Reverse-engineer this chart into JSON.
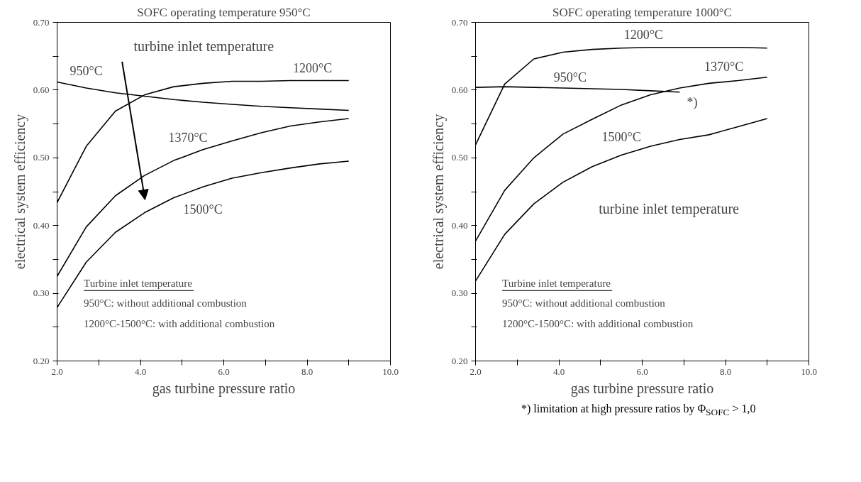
{
  "chart_data": [
    {
      "type": "line",
      "title": "SOFC operating temperature 950°C",
      "xlabel": "gas turbine pressure ratio",
      "ylabel": "electrical system efficiency",
      "x": [
        2.0,
        2.7,
        3.4,
        4.1,
        4.8,
        5.5,
        6.2,
        6.9,
        7.6,
        8.3,
        9.0
      ],
      "series": [
        {
          "name": "1200°C",
          "color": "#000000",
          "values": [
            0.434,
            0.517,
            0.569,
            0.593,
            0.605,
            0.61,
            0.613,
            0.613,
            0.614,
            0.614,
            0.614
          ]
        },
        {
          "name": "950°C",
          "color": "#000000",
          "values": [
            0.612,
            0.603,
            0.596,
            0.591,
            0.586,
            0.582,
            0.579,
            0.576,
            0.574,
            0.572,
            0.57
          ]
        },
        {
          "name": "1370°C",
          "color": "#000000",
          "values": [
            0.325,
            0.398,
            0.444,
            0.474,
            0.496,
            0.512,
            0.525,
            0.537,
            0.547,
            0.553,
            0.558
          ]
        },
        {
          "name": "1500°C",
          "color": "#000000",
          "values": [
            0.279,
            0.346,
            0.39,
            0.419,
            0.441,
            0.457,
            0.47,
            0.478,
            0.485,
            0.491,
            0.495
          ]
        }
      ],
      "xlim": [
        2.0,
        10.0
      ],
      "ylim": [
        0.2,
        0.7
      ],
      "xticks": [
        {
          "value": 2,
          "label": "2.0"
        },
        {
          "value": 3,
          "label": null
        },
        {
          "value": 4,
          "label": "4.0"
        },
        {
          "value": 5,
          "label": null
        },
        {
          "value": 6,
          "label": "6.0"
        },
        {
          "value": 7,
          "label": null
        },
        {
          "value": 8,
          "label": "8.0"
        },
        {
          "value": 9,
          "label": null
        },
        {
          "value": 10,
          "label": "10.0"
        }
      ],
      "yticks": [
        {
          "value": 0.2,
          "label": "0.20"
        },
        {
          "value": 0.25,
          "label": null
        },
        {
          "value": 0.3,
          "label": "0.30"
        },
        {
          "value": 0.35,
          "label": null
        },
        {
          "value": 0.4,
          "label": "0.40"
        },
        {
          "value": 0.45,
          "label": null
        },
        {
          "value": 0.5,
          "label": "0.50"
        },
        {
          "value": 0.55,
          "label": null
        },
        {
          "value": 0.6,
          "label": "0.60"
        },
        {
          "value": 0.65,
          "label": null
        },
        {
          "value": 0.7,
          "label": "0.70"
        }
      ],
      "grid": false,
      "legend": false,
      "line_style": "solid",
      "marker": "none",
      "annotations": [
        "Turbine inlet temperature",
        "950°C:   without additional combustion",
        "1200°C-1500°C:     with additional combustion",
        "turbine inlet temperature"
      ]
    },
    {
      "type": "line",
      "title": "SOFC operating temperature 1000°C",
      "xlabel": "gas turbine pressure ratio",
      "ylabel": "electrical system efficiency",
      "x": [
        2.0,
        2.7,
        3.4,
        4.1,
        4.8,
        5.5,
        6.2,
        6.9,
        7.6,
        8.3,
        9.0
      ],
      "series": [
        {
          "name": "1200°C",
          "color": "#000000",
          "values": [
            0.519,
            0.609,
            0.646,
            0.656,
            0.66,
            0.662,
            0.663,
            0.663,
            0.663,
            0.663,
            0.662
          ]
        },
        {
          "name": "950°C",
          "color": "#000000",
          "values": [
            0.604,
            0.605,
            0.604,
            0.603,
            0.602,
            0.601,
            0.599,
            0.597,
            null,
            null,
            null
          ]
        },
        {
          "name": "1370°C",
          "color": "#000000",
          "values": [
            0.377,
            0.452,
            0.5,
            0.535,
            0.557,
            0.578,
            0.593,
            0.603,
            0.61,
            0.614,
            0.619
          ]
        },
        {
          "name": "1500°C",
          "color": "#000000",
          "values": [
            0.318,
            0.387,
            0.432,
            0.464,
            0.487,
            0.504,
            0.517,
            0.527,
            0.534,
            0.546,
            0.558
          ]
        }
      ],
      "xlim": [
        2.0,
        10.0
      ],
      "ylim": [
        0.2,
        0.7
      ],
      "xticks": [
        {
          "value": 2,
          "label": "2.0"
        },
        {
          "value": 3,
          "label": null
        },
        {
          "value": 4,
          "label": "4.0"
        },
        {
          "value": 5,
          "label": null
        },
        {
          "value": 6,
          "label": "6.0"
        },
        {
          "value": 7,
          "label": null
        },
        {
          "value": 8,
          "label": "8.0"
        },
        {
          "value": 9,
          "label": null
        },
        {
          "value": 10,
          "label": "10.0"
        }
      ],
      "yticks": [
        {
          "value": 0.2,
          "label": "0.20"
        },
        {
          "value": 0.25,
          "label": null
        },
        {
          "value": 0.3,
          "label": "0.30"
        },
        {
          "value": 0.35,
          "label": null
        },
        {
          "value": 0.4,
          "label": "0.40"
        },
        {
          "value": 0.45,
          "label": null
        },
        {
          "value": 0.5,
          "label": "0.50"
        },
        {
          "value": 0.55,
          "label": null
        },
        {
          "value": 0.6,
          "label": "0.60"
        },
        {
          "value": 0.65,
          "label": null
        },
        {
          "value": 0.7,
          "label": "0.70"
        }
      ],
      "grid": false,
      "legend": false,
      "line_style": "solid",
      "marker": "none",
      "annotations": [
        "Turbine inlet temperature",
        "950°C:   without additional combustion",
        "1200°C-1500°C:     with additional combustion",
        "turbine inlet temperature",
        "*) limitation at high pressure ratios by Φ$_{SOFC}$ > 1,0",
        {
          "text": "*)",
          "x": 6.9,
          "y": 0.597
        }
      ]
    }
  ]
}
